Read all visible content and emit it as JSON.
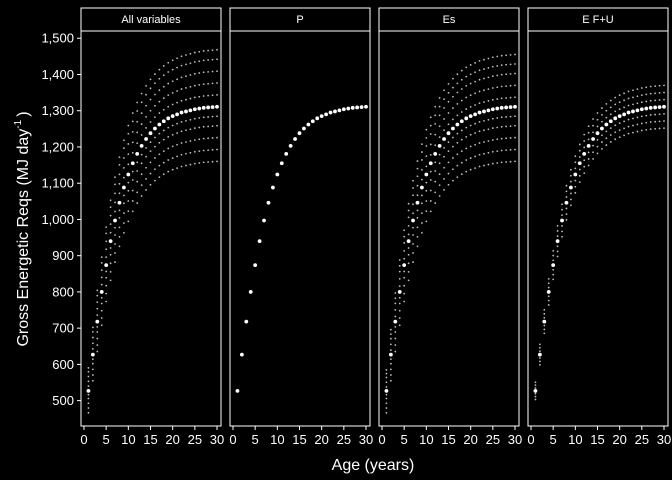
{
  "chart_data": {
    "type": "scatter",
    "xlabel": "Age (years)",
    "ylabel": {
      "text": "Gross Energetic Reqs (MJ day",
      "superscript": "-1",
      "close": ")"
    },
    "xlim": [
      0,
      30
    ],
    "ylim": [
      430,
      1520
    ],
    "x_ticks": [
      0,
      5,
      10,
      15,
      20,
      25,
      30
    ],
    "x_tick_labels": [
      "0",
      "5",
      "10",
      "15",
      "20",
      "25",
      "30"
    ],
    "y_ticks": [
      500,
      600,
      700,
      800,
      900,
      1000,
      1100,
      1200,
      1300,
      1400,
      1500
    ],
    "y_tick_labels": [
      "500",
      "600",
      "700",
      "800",
      "900",
      "1,000",
      "1,100",
      "1,200",
      "1,300",
      "1,400",
      "1,500"
    ],
    "grid": false,
    "colors": {
      "background": "#000000",
      "main_points": "#ffffff",
      "band_points": "#bdbdbd",
      "panel_border": "#ffffff"
    },
    "x": [
      1,
      2,
      3,
      4,
      5,
      6,
      7,
      8,
      9,
      10,
      11,
      12,
      13,
      14,
      15,
      16,
      17,
      18,
      19,
      20,
      21,
      22,
      23,
      24,
      25,
      26,
      27,
      28,
      29,
      30
    ],
    "central": [
      527,
      627,
      718,
      800,
      874,
      940,
      997,
      1046,
      1088,
      1124,
      1155,
      1181,
      1203,
      1222,
      1238,
      1251,
      1262,
      1271,
      1279,
      1285,
      1290,
      1295,
      1298,
      1301,
      1304,
      1306,
      1308,
      1309,
      1310,
      1311
    ],
    "panels": [
      {
        "strip": "All variables",
        "band_factors": [
          0.885,
          0.91,
          0.935,
          0.96,
          0.98,
          1.025,
          1.05,
          1.075,
          1.1,
          1.12
        ]
      },
      {
        "strip": "P",
        "band_factors": []
      },
      {
        "strip": "Es",
        "band_factors": [
          0.885,
          0.91,
          0.935,
          0.96,
          0.98,
          1.02,
          1.045,
          1.07,
          1.09,
          1.11
        ]
      },
      {
        "strip": "E F+U",
        "band_factors": [
          0.955,
          0.97,
          0.985,
          1.015,
          1.03,
          1.045
        ]
      }
    ]
  }
}
